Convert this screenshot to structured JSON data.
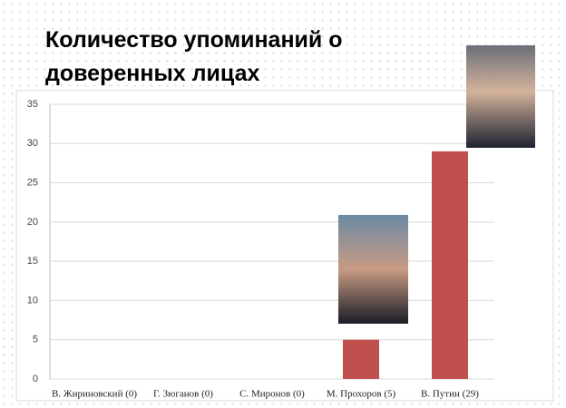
{
  "chart_data": {
    "type": "bar",
    "title": "Количество упоминаний о доверенных лицах",
    "categories": [
      "В. Жириновский (0)",
      "Г. Зюганов (0)",
      "С. Миронов (0)",
      "М. Прохоров (5)",
      "В. Путин (29)"
    ],
    "values": [
      0,
      0,
      0,
      5,
      29
    ],
    "color": "#c0504d",
    "ylim": [
      0,
      35
    ],
    "yticks": [
      0,
      5,
      10,
      15,
      20,
      25,
      30,
      35
    ],
    "grid": true
  }
}
